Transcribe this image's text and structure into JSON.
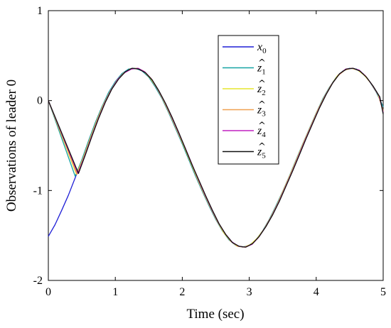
{
  "chart_data": {
    "type": "line",
    "xlabel": "Time (sec)",
    "ylabel": "Observations of leader 0",
    "xlim": [
      0,
      5
    ],
    "ylim": [
      -2,
      1
    ],
    "xticks": [
      "0",
      "1",
      "2",
      "3",
      "4",
      "5"
    ],
    "yticks": [
      "-2",
      "-1",
      "0",
      "1"
    ],
    "grid": false,
    "legend_position": "top-right",
    "series": [
      {
        "name": "x0",
        "color": "#1f1fd6",
        "x": [
          0,
          0.1,
          0.2,
          0.3,
          0.4,
          0.5,
          0.6,
          0.7,
          0.8,
          0.9,
          1.0,
          1.1,
          1.2,
          1.3,
          1.4,
          1.5,
          1.6,
          1.7,
          1.8,
          1.9,
          2.0,
          2.1,
          2.2,
          2.3,
          2.4,
          2.5,
          2.6,
          2.7,
          2.8,
          2.9,
          3.0,
          3.1,
          3.2,
          3.3,
          3.4,
          3.5,
          3.6,
          3.7,
          3.8,
          3.9,
          4.0,
          4.1,
          4.2,
          4.3,
          4.4,
          4.5,
          4.6,
          4.7,
          4.8,
          4.9,
          5.0
        ],
        "y": [
          -1.51,
          -1.38,
          -1.22,
          -1.05,
          -0.86,
          -0.66,
          -0.45,
          -0.25,
          -0.07,
          0.09,
          0.21,
          0.3,
          0.35,
          0.36,
          0.33,
          0.26,
          0.15,
          0.02,
          -0.14,
          -0.31,
          -0.48,
          -0.66,
          -0.84,
          -1.01,
          -1.17,
          -1.32,
          -1.45,
          -1.55,
          -1.61,
          -1.63,
          -1.61,
          -1.55,
          -1.45,
          -1.32,
          -1.17,
          -1.01,
          -0.84,
          -0.66,
          -0.48,
          -0.31,
          -0.14,
          0.02,
          0.15,
          0.26,
          0.33,
          0.36,
          0.35,
          0.3,
          0.21,
          0.09,
          -0.07
        ]
      },
      {
        "name": "z1",
        "color": "#17a3a3",
        "x": [
          0,
          0.4,
          0.5,
          0.6,
          0.7,
          0.8,
          0.9,
          1.0,
          1.1,
          1.2,
          1.3,
          1.4,
          1.5,
          1.6,
          1.7,
          1.8,
          1.9,
          2.0,
          2.1,
          2.2,
          2.3,
          2.4,
          2.5,
          2.6,
          2.7,
          2.8,
          2.9,
          3.0,
          3.1,
          3.2,
          3.3,
          3.4,
          3.5,
          3.6,
          3.7,
          3.8,
          3.9,
          4.0,
          4.1,
          4.2,
          4.3,
          4.4,
          4.5,
          4.6,
          4.7,
          4.8,
          4.9,
          5.0
        ],
        "y": [
          0,
          -0.84,
          -0.66,
          -0.45,
          -0.25,
          -0.07,
          0.09,
          0.21,
          0.3,
          0.35,
          0.36,
          0.33,
          0.26,
          0.15,
          0.02,
          -0.14,
          -0.31,
          -0.48,
          -0.66,
          -0.84,
          -1.01,
          -1.17,
          -1.32,
          -1.45,
          -1.55,
          -1.61,
          -1.63,
          -1.61,
          -1.55,
          -1.45,
          -1.32,
          -1.17,
          -1.01,
          -0.84,
          -0.66,
          -0.48,
          -0.31,
          -0.14,
          0.02,
          0.15,
          0.26,
          0.33,
          0.36,
          0.35,
          0.3,
          0.21,
          0.09,
          -0.07
        ]
      },
      {
        "name": "z2",
        "color": "#e6e62e",
        "x": [
          0,
          0.42,
          0.52,
          0.62,
          0.72,
          0.82,
          0.92,
          1.02,
          1.12,
          1.22,
          1.32,
          1.42,
          1.52,
          1.62,
          1.72,
          1.82,
          1.92,
          2.02,
          2.12,
          2.22,
          2.32,
          2.42,
          2.52,
          2.62,
          2.72,
          2.82,
          2.92,
          3.02,
          3.12,
          3.22,
          3.32,
          3.42,
          3.52,
          3.62,
          3.72,
          3.82,
          3.92,
          4.02,
          4.12,
          4.22,
          4.32,
          4.42,
          4.52,
          4.62,
          4.72,
          4.82,
          4.92,
          5.0
        ],
        "y": [
          0,
          -0.82,
          -0.64,
          -0.43,
          -0.23,
          -0.05,
          0.1,
          0.22,
          0.3,
          0.35,
          0.36,
          0.33,
          0.25,
          0.14,
          0.0,
          -0.16,
          -0.33,
          -0.5,
          -0.68,
          -0.86,
          -1.03,
          -1.19,
          -1.34,
          -1.47,
          -1.56,
          -1.62,
          -1.63,
          -1.6,
          -1.53,
          -1.43,
          -1.3,
          -1.15,
          -0.98,
          -0.81,
          -0.63,
          -0.45,
          -0.28,
          -0.11,
          0.04,
          0.17,
          0.28,
          0.34,
          0.36,
          0.34,
          0.28,
          0.19,
          0.07,
          -0.11
        ]
      },
      {
        "name": "z3",
        "color": "#f0a050",
        "x": [
          0,
          0.43,
          0.53,
          0.63,
          0.73,
          0.83,
          0.93,
          1.03,
          1.13,
          1.23,
          1.33,
          1.43,
          1.53,
          1.63,
          1.73,
          1.83,
          1.93,
          2.03,
          2.13,
          2.23,
          2.33,
          2.43,
          2.53,
          2.63,
          2.73,
          2.83,
          2.93,
          3.03,
          3.13,
          3.23,
          3.33,
          3.43,
          3.53,
          3.63,
          3.73,
          3.83,
          3.93,
          4.03,
          4.13,
          4.23,
          4.33,
          4.43,
          4.53,
          4.63,
          4.73,
          4.83,
          4.93,
          5.0
        ],
        "y": [
          0,
          -0.82,
          -0.63,
          -0.42,
          -0.22,
          -0.04,
          0.11,
          0.23,
          0.31,
          0.35,
          0.36,
          0.32,
          0.25,
          0.13,
          -0.01,
          -0.17,
          -0.34,
          -0.51,
          -0.69,
          -0.87,
          -1.04,
          -1.2,
          -1.35,
          -1.47,
          -1.57,
          -1.62,
          -1.63,
          -1.6,
          -1.53,
          -1.42,
          -1.29,
          -1.14,
          -0.97,
          -0.8,
          -0.62,
          -0.44,
          -0.27,
          -0.1,
          0.05,
          0.18,
          0.28,
          0.34,
          0.36,
          0.34,
          0.28,
          0.18,
          0.06,
          -0.12
        ]
      },
      {
        "name": "z4",
        "color": "#c020c0",
        "x": [
          0,
          0.44,
          0.54,
          0.64,
          0.74,
          0.84,
          0.94,
          1.04,
          1.14,
          1.24,
          1.34,
          1.44,
          1.54,
          1.64,
          1.74,
          1.84,
          1.94,
          2.04,
          2.14,
          2.24,
          2.34,
          2.44,
          2.54,
          2.64,
          2.74,
          2.84,
          2.94,
          3.04,
          3.14,
          3.24,
          3.34,
          3.44,
          3.54,
          3.64,
          3.74,
          3.84,
          3.94,
          4.04,
          4.14,
          4.24,
          4.34,
          4.44,
          4.54,
          4.64,
          4.74,
          4.84,
          4.94,
          5.0
        ],
        "y": [
          0,
          -0.81,
          -0.62,
          -0.41,
          -0.21,
          -0.03,
          0.12,
          0.24,
          0.31,
          0.35,
          0.36,
          0.32,
          0.24,
          0.12,
          -0.02,
          -0.18,
          -0.35,
          -0.52,
          -0.7,
          -0.88,
          -1.05,
          -1.21,
          -1.36,
          -1.48,
          -1.57,
          -1.62,
          -1.63,
          -1.6,
          -1.52,
          -1.41,
          -1.28,
          -1.13,
          -0.96,
          -0.79,
          -0.61,
          -0.43,
          -0.26,
          -0.09,
          0.06,
          0.19,
          0.29,
          0.35,
          0.36,
          0.34,
          0.27,
          0.17,
          0.05,
          -0.13
        ]
      },
      {
        "name": "z5",
        "color": "#111111",
        "x": [
          0,
          0.45,
          0.55,
          0.65,
          0.75,
          0.85,
          0.95,
          1.05,
          1.15,
          1.25,
          1.35,
          1.45,
          1.55,
          1.65,
          1.75,
          1.85,
          1.95,
          2.05,
          2.15,
          2.25,
          2.35,
          2.45,
          2.55,
          2.65,
          2.75,
          2.85,
          2.95,
          3.05,
          3.15,
          3.25,
          3.35,
          3.45,
          3.55,
          3.65,
          3.75,
          3.85,
          3.95,
          4.05,
          4.15,
          4.25,
          4.35,
          4.45,
          4.55,
          4.65,
          4.75,
          4.85,
          4.95,
          5.0
        ],
        "y": [
          0,
          -0.81,
          -0.61,
          -0.4,
          -0.2,
          -0.02,
          0.13,
          0.24,
          0.32,
          0.36,
          0.35,
          0.31,
          0.23,
          0.11,
          -0.03,
          -0.19,
          -0.36,
          -0.54,
          -0.72,
          -0.89,
          -1.06,
          -1.22,
          -1.37,
          -1.49,
          -1.58,
          -1.62,
          -1.63,
          -1.59,
          -1.51,
          -1.4,
          -1.27,
          -1.12,
          -0.95,
          -0.78,
          -0.6,
          -0.42,
          -0.25,
          -0.08,
          0.07,
          0.2,
          0.3,
          0.35,
          0.36,
          0.33,
          0.26,
          0.16,
          0.04,
          -0.15
        ]
      }
    ]
  },
  "legend": [
    {
      "base": "x",
      "sub": "0",
      "hat": false,
      "color": "#1f1fd6"
    },
    {
      "base": "z",
      "sub": "1",
      "hat": true,
      "color": "#17a3a3"
    },
    {
      "base": "z",
      "sub": "2",
      "hat": true,
      "color": "#e6e62e"
    },
    {
      "base": "z",
      "sub": "3",
      "hat": true,
      "color": "#f0a050"
    },
    {
      "base": "z",
      "sub": "4",
      "hat": true,
      "color": "#c020c0"
    },
    {
      "base": "z",
      "sub": "5",
      "hat": true,
      "color": "#111111"
    }
  ]
}
